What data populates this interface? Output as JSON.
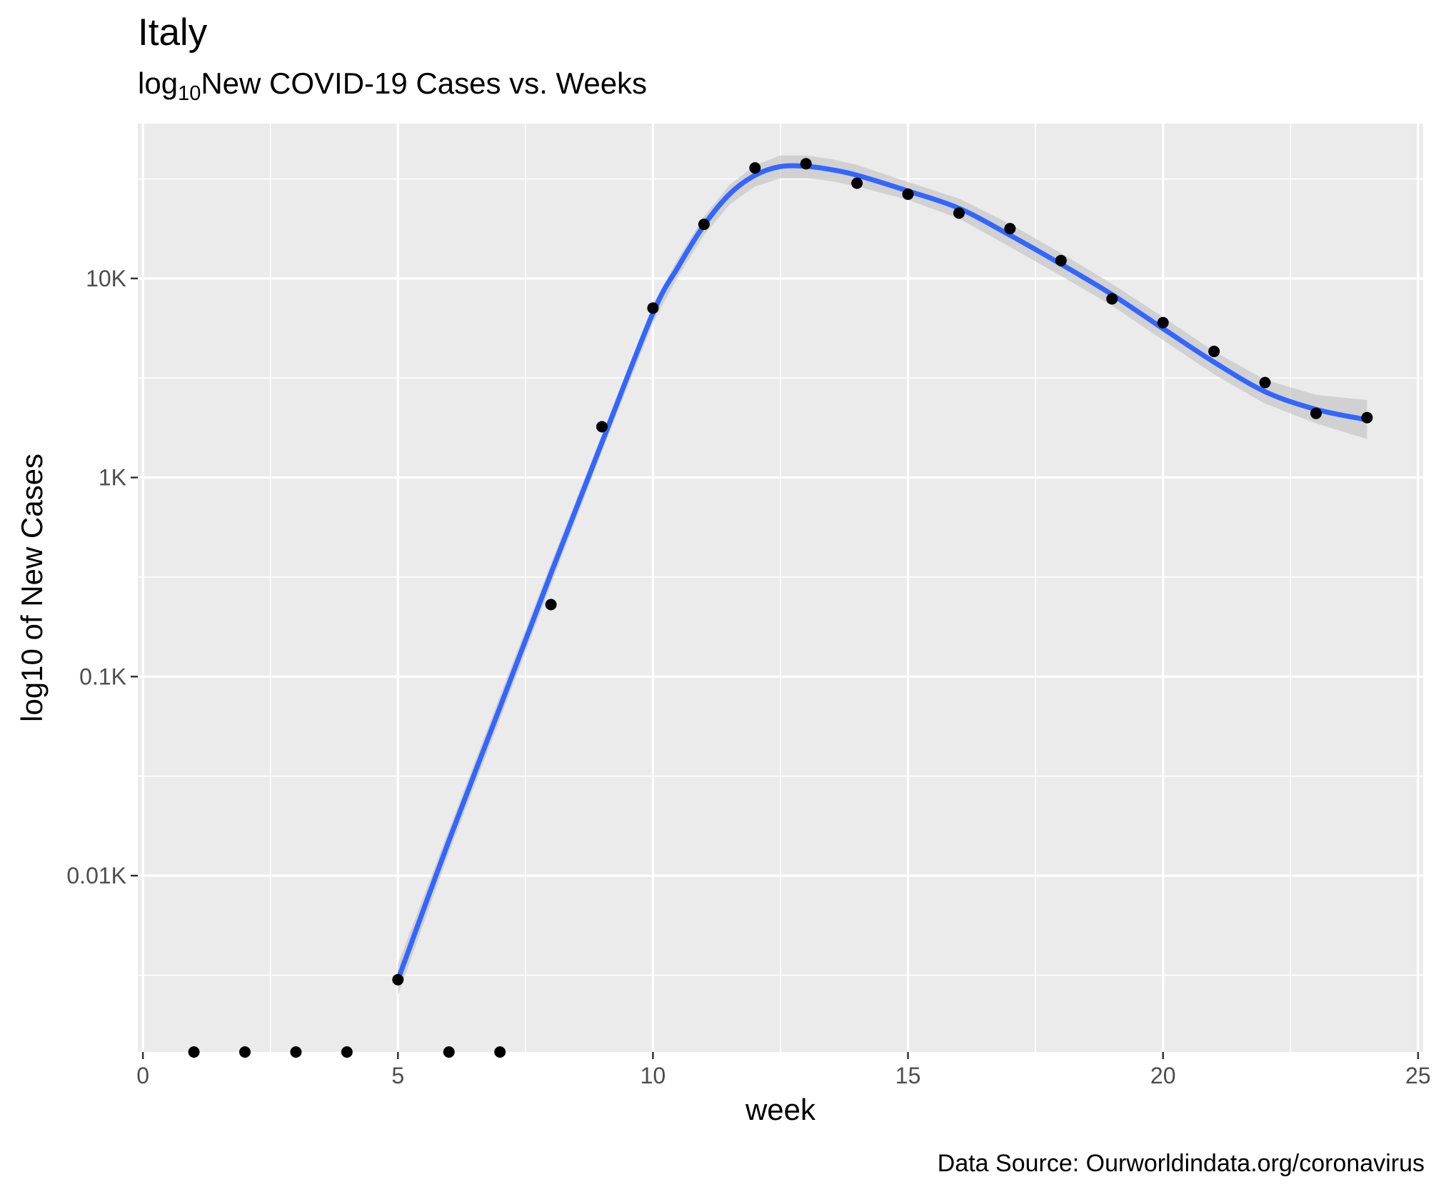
{
  "chart_data": {
    "type": "scatter",
    "title": "Italy",
    "subtitle": {
      "prefix": "log",
      "subscript": "10",
      "text": "New COVID-19 Cases vs. Weeks"
    },
    "xlabel": "week",
    "ylabel": "log10 of New Cases",
    "caption": "Data Source: Ourworldindata.org/coronavirus",
    "y_scale": "log10",
    "xlim": [
      -0.1,
      25.1
    ],
    "ylim": [
      1.3,
      60000
    ],
    "x_ticks": [
      0,
      5,
      10,
      15,
      20,
      25
    ],
    "x_tick_labels": [
      "0",
      "5",
      "10",
      "15",
      "20",
      "25"
    ],
    "y_ticks": [
      10,
      100,
      1000,
      10000
    ],
    "y_tick_labels": [
      "0.01K",
      "0.1K",
      "1K",
      "10K"
    ],
    "grid": true,
    "background": "#ebebeb",
    "points": {
      "color": "#000000",
      "x": [
        1,
        2,
        3,
        4,
        5,
        6,
        7,
        8,
        9,
        10,
        11,
        12,
        13,
        14,
        15,
        16,
        17,
        18,
        19,
        20,
        21,
        22,
        23,
        24
      ],
      "y": [
        1.3,
        1.3,
        1.3,
        1.3,
        3,
        1.3,
        1.3,
        230,
        1800,
        7100,
        18700,
        35900,
        37700,
        30100,
        26500,
        21300,
        17800,
        12300,
        7900,
        6000,
        4300,
        3000,
        2100,
        2000
      ]
    },
    "smooth": {
      "color": "#3366ff",
      "band_color": "#bfbfbf",
      "x": [
        5,
        6,
        7,
        8,
        9,
        10,
        10.5,
        11,
        11.5,
        12,
        12.5,
        13,
        13.5,
        14,
        15,
        16,
        17,
        18,
        19,
        20,
        21,
        22,
        23,
        24
      ],
      "y": [
        3,
        15,
        70,
        330,
        1500,
        6700,
        11500,
        18500,
        26500,
        33000,
        36500,
        36600,
        35200,
        33000,
        27500,
        22500,
        16500,
        11800,
        8300,
        5600,
        3800,
        2700,
        2200,
        1950
      ],
      "band_upper": [
        3.6,
        17,
        80,
        370,
        1650,
        7400,
        12700,
        20500,
        29500,
        37000,
        41500,
        41500,
        39800,
        37200,
        30500,
        25200,
        18800,
        13400,
        9400,
        6400,
        4300,
        3100,
        2600,
        2450
      ],
      "band_lower": [
        2.5,
        13,
        61,
        290,
        1350,
        6000,
        10300,
        16500,
        23500,
        29000,
        31800,
        31900,
        30800,
        29000,
        24800,
        20000,
        14400,
        10300,
        7300,
        4900,
        3300,
        2350,
        1870,
        1560
      ]
    }
  }
}
